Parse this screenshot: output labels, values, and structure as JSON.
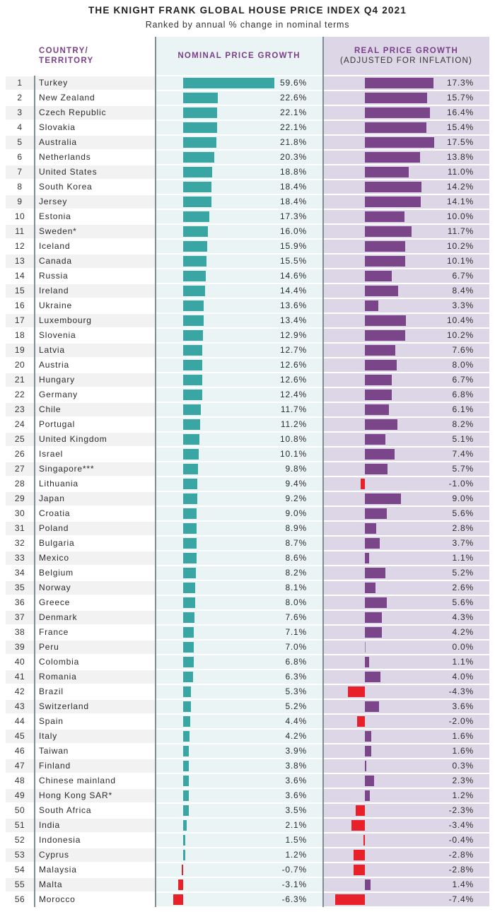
{
  "chart_data": {
    "type": "bar",
    "title": "THE KNIGHT FRANK GLOBAL HOUSE PRICE INDEX Q4 2021",
    "subtitle": "Ranked by annual % change in nominal terms",
    "headers": {
      "country": "COUNTRY/ TERRITORY",
      "nominal": "NOMINAL PRICE GROWTH",
      "real": "REAL PRICE GROWTH",
      "real_sub": "(ADJUSTED FOR INFLATION)"
    },
    "colors": {
      "nominal_positive": "#3aa6a3",
      "real_positive": "#7a4589",
      "negative": "#e8202a",
      "header_text": "#7a3f8a",
      "nominal_bg": "#eaf4f5",
      "real_bg": "#ddd6e6"
    },
    "series": [
      {
        "name": "Nominal price growth (%)",
        "key": "nominal"
      },
      {
        "name": "Real price growth (%)",
        "key": "real"
      }
    ],
    "rows": [
      {
        "rank": "1",
        "country": "Turkey",
        "nominal": 59.6,
        "real": 17.3
      },
      {
        "rank": "2",
        "country": "New Zealand",
        "nominal": 22.6,
        "real": 15.7
      },
      {
        "rank": "3",
        "country": "Czech Republic",
        "nominal": 22.1,
        "real": 16.4
      },
      {
        "rank": "4",
        "country": "Slovakia",
        "nominal": 22.1,
        "real": 15.4
      },
      {
        "rank": "5",
        "country": "Australia",
        "nominal": 21.8,
        "real": 17.5
      },
      {
        "rank": "6",
        "country": "Netherlands",
        "nominal": 20.3,
        "real": 13.8
      },
      {
        "rank": "7",
        "country": "United States",
        "nominal": 18.8,
        "real": 11.0
      },
      {
        "rank": "8",
        "country": "South Korea",
        "nominal": 18.4,
        "real": 14.2
      },
      {
        "rank": "9",
        "country": "Jersey",
        "nominal": 18.4,
        "real": 14.1
      },
      {
        "rank": "10",
        "country": "Estonia",
        "nominal": 17.3,
        "real": 10.0
      },
      {
        "rank": "11",
        "country": "Sweden*",
        "nominal": 16.0,
        "real": 11.7
      },
      {
        "rank": "12",
        "country": "Iceland",
        "nominal": 15.9,
        "real": 10.2
      },
      {
        "rank": "13",
        "country": "Canada",
        "nominal": 15.5,
        "real": 10.1
      },
      {
        "rank": "14",
        "country": "Russia",
        "nominal": 14.6,
        "real": 6.7
      },
      {
        "rank": "15",
        "country": "Ireland",
        "nominal": 14.4,
        "real": 8.4
      },
      {
        "rank": "16",
        "country": "Ukraine",
        "nominal": 13.6,
        "real": 3.3
      },
      {
        "rank": "17",
        "country": "Luxembourg",
        "nominal": 13.4,
        "real": 10.4
      },
      {
        "rank": "18",
        "country": "Slovenia",
        "nominal": 12.9,
        "real": 10.2
      },
      {
        "rank": "19",
        "country": "Latvia",
        "nominal": 12.7,
        "real": 7.6
      },
      {
        "rank": "20",
        "country": "Austria",
        "nominal": 12.6,
        "real": 8.0
      },
      {
        "rank": "21",
        "country": "Hungary",
        "nominal": 12.6,
        "real": 6.7
      },
      {
        "rank": "22",
        "country": "Germany",
        "nominal": 12.4,
        "real": 6.8
      },
      {
        "rank": "23",
        "country": "Chile",
        "nominal": 11.7,
        "real": 6.1
      },
      {
        "rank": "24",
        "country": "Portugal",
        "nominal": 11.2,
        "real": 8.2
      },
      {
        "rank": "25",
        "country": "United Kingdom",
        "nominal": 10.8,
        "real": 5.1
      },
      {
        "rank": "26",
        "country": "Israel",
        "nominal": 10.1,
        "real": 7.4
      },
      {
        "rank": "27",
        "country": "Singapore***",
        "nominal": 9.8,
        "real": 5.7
      },
      {
        "rank": "28",
        "country": "Lithuania",
        "nominal": 9.4,
        "real": -1.0
      },
      {
        "rank": "29",
        "country": "Japan",
        "nominal": 9.2,
        "real": 9.0
      },
      {
        "rank": "30",
        "country": "Croatia",
        "nominal": 9.0,
        "real": 5.6
      },
      {
        "rank": "31",
        "country": "Poland",
        "nominal": 8.9,
        "real": 2.8
      },
      {
        "rank": "32",
        "country": "Bulgaria",
        "nominal": 8.7,
        "real": 3.7
      },
      {
        "rank": "33",
        "country": "Mexico",
        "nominal": 8.6,
        "real": 1.1
      },
      {
        "rank": "34",
        "country": "Belgium",
        "nominal": 8.2,
        "real": 5.2
      },
      {
        "rank": "35",
        "country": "Norway",
        "nominal": 8.1,
        "real": 2.6
      },
      {
        "rank": "36",
        "country": "Greece",
        "nominal": 8.0,
        "real": 5.6
      },
      {
        "rank": "37",
        "country": "Denmark",
        "nominal": 7.6,
        "real": 4.3
      },
      {
        "rank": "38",
        "country": "France",
        "nominal": 7.1,
        "real": 4.2
      },
      {
        "rank": "39",
        "country": "Peru",
        "nominal": 7.0,
        "real": 0.0
      },
      {
        "rank": "40",
        "country": "Colombia",
        "nominal": 6.8,
        "real": 1.1
      },
      {
        "rank": "41",
        "country": "Romania",
        "nominal": 6.3,
        "real": 4.0
      },
      {
        "rank": "42",
        "country": "Brazil",
        "nominal": 5.3,
        "real": -4.3
      },
      {
        "rank": "43",
        "country": "Switzerland",
        "nominal": 5.2,
        "real": 3.6
      },
      {
        "rank": "44",
        "country": "Spain",
        "nominal": 4.4,
        "real": -2.0
      },
      {
        "rank": "45",
        "country": "Italy",
        "nominal": 4.2,
        "real": 1.6
      },
      {
        "rank": "46",
        "country": "Taiwan",
        "nominal": 3.9,
        "real": 1.6
      },
      {
        "rank": "47",
        "country": "Finland",
        "nominal": 3.8,
        "real": 0.3
      },
      {
        "rank": "48",
        "country": "Chinese mainland",
        "nominal": 3.6,
        "real": 2.3
      },
      {
        "rank": "49",
        "country": "Hong Kong SAR*",
        "nominal": 3.6,
        "real": 1.2
      },
      {
        "rank": "50",
        "country": "South Africa",
        "nominal": 3.5,
        "real": -2.3
      },
      {
        "rank": "51",
        "country": "India",
        "nominal": 2.1,
        "real": -3.4
      },
      {
        "rank": "52",
        "country": "Indonesia",
        "nominal": 1.5,
        "real": -0.4
      },
      {
        "rank": "53",
        "country": "Cyprus",
        "nominal": 1.2,
        "real": -2.8
      },
      {
        "rank": "54",
        "country": "Malaysia",
        "nominal": -0.7,
        "real": -2.8
      },
      {
        "rank": "55",
        "country": "Malta",
        "nominal": -3.1,
        "real": 1.4
      },
      {
        "rank": "56",
        "country": "Morocco",
        "nominal": -6.3,
        "real": -7.4
      }
    ],
    "value_suffix": "%",
    "xlabel": "",
    "ylabel": "",
    "grid": false,
    "legend": "none"
  }
}
